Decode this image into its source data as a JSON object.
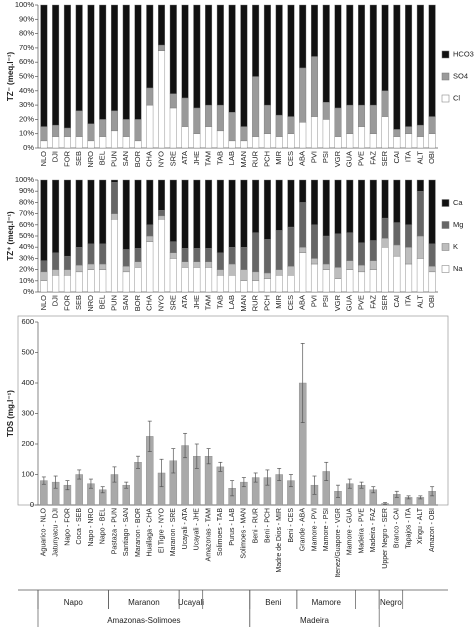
{
  "chart_data": [
    {
      "type": "stacked_bar",
      "ylabel": "TZ⁻ (meq.l⁻¹)",
      "categories": [
        "NLO",
        "DJI",
        "FOR",
        "SEB",
        "NRO",
        "BEL",
        "PUN",
        "SAN",
        "BOR",
        "CHA",
        "NYO",
        "SRE",
        "ATA",
        "JHE",
        "TAM",
        "TAB",
        "LAB",
        "MAN",
        "RUR",
        "PCH",
        "MIR",
        "CES",
        "ABA",
        "PVI",
        "PSI",
        "VGR",
        "GUA",
        "PVE",
        "FAZ",
        "SER",
        "CAI",
        "ITA",
        "ALT",
        "OBI"
      ],
      "series": [
        {
          "name": "Cl",
          "color": "#ffffff",
          "values": [
            5,
            8,
            8,
            8,
            5,
            8,
            12,
            8,
            5,
            30,
            68,
            28,
            15,
            10,
            15,
            12,
            5,
            5,
            8,
            10,
            8,
            10,
            18,
            22,
            20,
            8,
            10,
            15,
            10,
            22,
            8,
            10,
            8,
            10
          ]
        },
        {
          "name": "SO4",
          "color": "#9a9a9a",
          "values": [
            10,
            8,
            6,
            18,
            12,
            12,
            14,
            12,
            15,
            12,
            4,
            10,
            20,
            18,
            15,
            18,
            20,
            10,
            42,
            20,
            15,
            12,
            38,
            42,
            12,
            20,
            20,
            15,
            20,
            18,
            5,
            5,
            8,
            12
          ]
        },
        {
          "name": "HCO3-",
          "color": "#111111",
          "values": [
            85,
            84,
            86,
            74,
            83,
            80,
            74,
            80,
            80,
            58,
            28,
            62,
            65,
            72,
            70,
            70,
            75,
            85,
            50,
            70,
            77,
            78,
            44,
            36,
            68,
            72,
            70,
            70,
            70,
            60,
            87,
            85,
            84,
            78
          ]
        }
      ],
      "ylim": [
        0,
        100
      ],
      "yticks": [
        {
          "value": 0,
          "label": "0%"
        },
        {
          "value": 10,
          "label": "10%"
        },
        {
          "value": 20,
          "label": "20%"
        },
        {
          "value": 30,
          "label": "30%"
        },
        {
          "value": 40,
          "label": "40%"
        },
        {
          "value": 50,
          "label": "50%"
        },
        {
          "value": 60,
          "label": "60%"
        },
        {
          "value": 70,
          "label": "70%"
        },
        {
          "value": 80,
          "label": "80%"
        },
        {
          "value": 90,
          "label": "90%"
        },
        {
          "value": 100,
          "label": "100%"
        }
      ],
      "legend": "right"
    },
    {
      "type": "stacked_bar",
      "ylabel": "TZ⁺ (meq.l⁻¹)",
      "categories": [
        "NLO",
        "DJI",
        "FOR",
        "SEB",
        "NRO",
        "BEL",
        "PUN",
        "SAN",
        "BOR",
        "CHA",
        "NYO",
        "SRE",
        "ATA",
        "JHE",
        "TAM",
        "TAB",
        "LAB",
        "MAN",
        "RUR",
        "PCH",
        "MIR",
        "CES",
        "ABA",
        "PVI",
        "PSI",
        "VGR",
        "GUA",
        "PVE",
        "FAZ",
        "SER",
        "CAI",
        "ITA",
        "ALT",
        "OBI"
      ],
      "series": [
        {
          "name": "Na",
          "color": "#ffffff",
          "values": [
            10,
            15,
            15,
            18,
            20,
            20,
            65,
            18,
            22,
            45,
            65,
            30,
            22,
            22,
            22,
            15,
            15,
            10,
            10,
            12,
            15,
            15,
            35,
            25,
            20,
            12,
            20,
            18,
            20,
            40,
            32,
            25,
            30,
            18
          ]
        },
        {
          "name": "K",
          "color": "#bdbdbd",
          "values": [
            8,
            5,
            5,
            6,
            5,
            5,
            5,
            5,
            5,
            5,
            3,
            5,
            5,
            5,
            5,
            5,
            10,
            10,
            8,
            5,
            5,
            8,
            5,
            5,
            5,
            10,
            8,
            6,
            8,
            8,
            10,
            15,
            20,
            5
          ]
        },
        {
          "name": "Mg",
          "color": "#666666",
          "values": [
            10,
            15,
            12,
            16,
            18,
            18,
            28,
            15,
            12,
            10,
            5,
            10,
            12,
            12,
            12,
            15,
            15,
            20,
            35,
            30,
            35,
            35,
            40,
            30,
            25,
            30,
            25,
            20,
            18,
            18,
            20,
            20,
            40,
            20
          ]
        },
        {
          "name": "Ca",
          "color": "#111111",
          "values": [
            72,
            65,
            68,
            60,
            57,
            57,
            2,
            62,
            61,
            40,
            27,
            55,
            61,
            61,
            61,
            65,
            60,
            60,
            47,
            53,
            45,
            42,
            20,
            40,
            50,
            48,
            47,
            56,
            54,
            34,
            38,
            40,
            10,
            57
          ]
        }
      ],
      "ylim": [
        0,
        100
      ],
      "yticks": [
        {
          "value": 0,
          "label": "0%"
        },
        {
          "value": 10,
          "label": "10%"
        },
        {
          "value": 20,
          "label": "20%"
        },
        {
          "value": 30,
          "label": "30%"
        },
        {
          "value": 40,
          "label": "40%"
        },
        {
          "value": 50,
          "label": "50%"
        },
        {
          "value": 60,
          "label": "60%"
        },
        {
          "value": 70,
          "label": "70%"
        },
        {
          "value": 80,
          "label": "80%"
        },
        {
          "value": 90,
          "label": "90%"
        },
        {
          "value": 100,
          "label": "100%"
        }
      ],
      "legend": "right"
    },
    {
      "type": "error_bar",
      "ylabel": "TDS (mg.l⁻¹)",
      "color": "#a9a9a9",
      "categories": [
        "Aguarico - NLO",
        "Jatunyacu - DJI",
        "Napo - FOR",
        "Coca - SEB",
        "Napo - NRO",
        "Napo - BEL",
        "Pastaza - PUN",
        "Santiago - SAN",
        "Maranon - BOR",
        "Huallaga - CHA",
        "El Tigre - NYO",
        "Maranon - SRE",
        "Ucayali - ATA",
        "Ucayali - JHE",
        "Amazonas - TAM",
        "Solimoes - TAB",
        "Purus - LAB",
        "Solimoes - MAN",
        "Beni - RUR",
        "Beni - PCH",
        "Madre de Dios - MIR",
        "Beni - CES",
        "Grande - ABA",
        "Mamore - PVI",
        "Mamore - PSI",
        "Itenez/Guapore - VGR",
        "Mamore - GUA",
        "Madeira - PVE",
        "Madeira - FAZ",
        "Upper Negro - SER",
        "Branco - CAI",
        "Tapajos - ITA",
        "Xingu - ALT",
        "Amazon - OBI"
      ],
      "values": [
        80,
        75,
        65,
        100,
        70,
        50,
        100,
        65,
        140,
        225,
        105,
        145,
        195,
        160,
        160,
        125,
        55,
        75,
        90,
        90,
        100,
        80,
        400,
        65,
        110,
        45,
        70,
        65,
        50,
        5,
        35,
        25,
        25,
        45
      ],
      "errors": [
        12,
        20,
        15,
        15,
        15,
        10,
        25,
        10,
        20,
        50,
        45,
        40,
        40,
        40,
        25,
        15,
        25,
        15,
        15,
        25,
        20,
        20,
        130,
        30,
        30,
        20,
        15,
        10,
        10,
        3,
        10,
        5,
        5,
        15
      ],
      "ylim": [
        0,
        600
      ],
      "yticks": [
        0,
        100,
        200,
        300,
        400,
        500,
        600
      ],
      "group_labels": [
        "Napo",
        "Maranon",
        "Ucayali",
        "Beni",
        "Mamore",
        "Negro"
      ],
      "supergroup_labels": [
        "Amazonas-Solimoes",
        "Madeira"
      ]
    }
  ]
}
